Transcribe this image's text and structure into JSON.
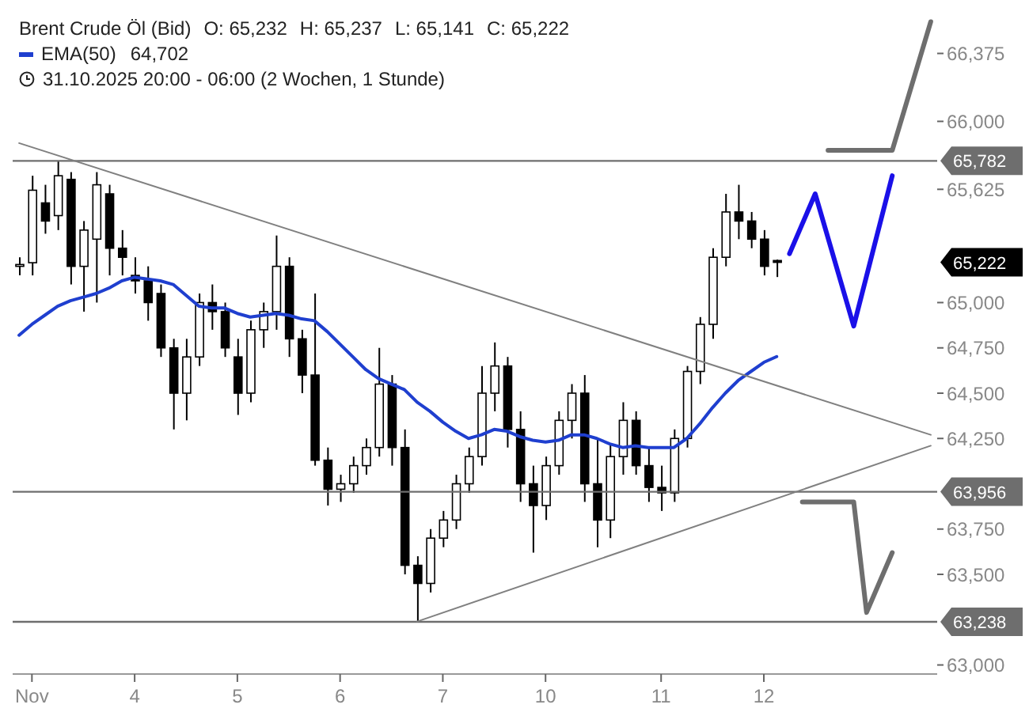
{
  "chart_data": {
    "type": "candlestick",
    "title": "Brent Crude Öl (Bid)",
    "subtitle": "31.10.2025 20:00 - 06:00  (2 Wochen, 1 Stunde)",
    "annotations": [
      "O: 65,232",
      "H: 65,237",
      "L: 65,141",
      "C: 65,222",
      "64,702",
      "65,222"
    ],
    "categories": [
      null,
      "Nov",
      null,
      null,
      null,
      null,
      null,
      null,
      null,
      "4",
      null,
      null,
      null,
      null,
      null,
      null,
      null,
      "5",
      null,
      null,
      null,
      null,
      null,
      null,
      null,
      "6",
      null,
      null,
      null,
      null,
      null,
      null,
      null,
      "7",
      null,
      null,
      null,
      null,
      null,
      null,
      null,
      "10",
      null,
      null,
      null,
      null,
      null,
      null,
      null,
      null,
      "11",
      null,
      null,
      null,
      null,
      null,
      null,
      null,
      "12",
      null,
      null,
      null,
      null,
      null,
      null,
      null,
      null,
      null,
      null,
      null,
      null,
      null
    ],
    "ohlc": [
      [
        65200,
        65250,
        65150,
        65210
      ],
      [
        65220,
        65700,
        65150,
        65620
      ],
      [
        65550,
        65650,
        65380,
        65450
      ],
      [
        65480,
        65780,
        65400,
        65700
      ],
      [
        65680,
        65720,
        65100,
        65200
      ],
      [
        65200,
        65450,
        64950,
        65400
      ],
      [
        65350,
        65720,
        65000,
        65650
      ],
      [
        65600,
        65650,
        65150,
        65300
      ],
      [
        65300,
        65400,
        65150,
        65250
      ],
      [
        65150,
        65250,
        65050,
        65120
      ],
      [
        65120,
        65200,
        64900,
        65000
      ],
      [
        65050,
        65100,
        64700,
        64750
      ],
      [
        64750,
        64800,
        64300,
        64500
      ],
      [
        64500,
        64800,
        64350,
        64700
      ],
      [
        64700,
        65050,
        64650,
        65000
      ],
      [
        65000,
        65100,
        64850,
        64950
      ],
      [
        64950,
        65000,
        64700,
        64750
      ],
      [
        64700,
        64800,
        64380,
        64500
      ],
      [
        64500,
        64900,
        64450,
        64850
      ],
      [
        64850,
        65000,
        64750,
        64950
      ],
      [
        64950,
        65370,
        64850,
        65200
      ],
      [
        65200,
        65250,
        64700,
        64800
      ],
      [
        64800,
        64850,
        64500,
        64600
      ],
      [
        64600,
        65050,
        64100,
        64130
      ],
      [
        64130,
        64200,
        63880,
        63970
      ],
      [
        63970,
        64050,
        63900,
        64000
      ],
      [
        64000,
        64150,
        63950,
        64100
      ],
      [
        64100,
        64250,
        64050,
        64200
      ],
      [
        64200,
        64750,
        64150,
        64550
      ],
      [
        64550,
        64600,
        64100,
        64200
      ],
      [
        64200,
        64300,
        63500,
        63550
      ],
      [
        63550,
        63600,
        63240,
        63450
      ],
      [
        63450,
        63750,
        63400,
        63700
      ],
      [
        63700,
        63850,
        63650,
        63800
      ],
      [
        63800,
        64050,
        63750,
        64000
      ],
      [
        64000,
        64200,
        63950,
        64150
      ],
      [
        64150,
        64650,
        64100,
        64500
      ],
      [
        64500,
        64780,
        64400,
        64650
      ],
      [
        64650,
        64700,
        64200,
        64300
      ],
      [
        64300,
        64400,
        63900,
        64000
      ],
      [
        64000,
        64100,
        63620,
        63880
      ],
      [
        63880,
        64150,
        63800,
        64100
      ],
      [
        64100,
        64400,
        64050,
        64350
      ],
      [
        64350,
        64550,
        64250,
        64500
      ],
      [
        64500,
        64600,
        63900,
        64000
      ],
      [
        64000,
        64250,
        63650,
        63800
      ],
      [
        63800,
        64220,
        63700,
        64150
      ],
      [
        64150,
        64450,
        64050,
        64350
      ],
      [
        64350,
        64400,
        64050,
        64100
      ],
      [
        64100,
        64200,
        63900,
        63980
      ],
      [
        63980,
        64100,
        63850,
        63950
      ],
      [
        63950,
        64300,
        63900,
        64250
      ],
      [
        64250,
        64650,
        64200,
        64620
      ],
      [
        64620,
        64920,
        64550,
        64880
      ],
      [
        64880,
        65300,
        64800,
        65250
      ],
      [
        65250,
        65600,
        65200,
        65500
      ],
      [
        65500,
        65650,
        65350,
        65450
      ],
      [
        65450,
        65500,
        65300,
        65350
      ],
      [
        65350,
        65400,
        65150,
        65200
      ],
      [
        65232,
        65237,
        65141,
        65222
      ],
      null,
      null,
      null,
      null,
      null,
      null,
      null,
      null,
      null,
      null,
      null,
      null
    ],
    "series": [
      {
        "name": "EMA(50)",
        "type": "line",
        "color": "#1f3fcf",
        "values": [
          64820,
          64880,
          64930,
          64980,
          65010,
          65030,
          65050,
          65080,
          65120,
          65140,
          65130,
          65120,
          65100,
          65040,
          64980,
          64970,
          64970,
          64940,
          64920,
          64930,
          64940,
          64930,
          64910,
          64900,
          64840,
          64770,
          64700,
          64630,
          64580,
          64550,
          64520,
          64450,
          64400,
          64340,
          64290,
          64250,
          64270,
          64300,
          64290,
          64260,
          64240,
          64230,
          64240,
          64270,
          64270,
          64250,
          64220,
          64200,
          64210,
          64200,
          64200,
          64200,
          64250,
          64330,
          64420,
          64500,
          64570,
          64620,
          64670,
          64702,
          null,
          null,
          null,
          null,
          null,
          null,
          null,
          null,
          null,
          null,
          null,
          null
        ]
      },
      {
        "type": "line",
        "color": "#808080",
        "values": [
          65880,
          null,
          null,
          null,
          null,
          null,
          null,
          null,
          null,
          null,
          null,
          null,
          null,
          null,
          null,
          null,
          null,
          null,
          null,
          null,
          null,
          null,
          null,
          null,
          null,
          null,
          null,
          null,
          null,
          null,
          null,
          null,
          null,
          null,
          null,
          null,
          null,
          null,
          null,
          null,
          null,
          null,
          null,
          null,
          null,
          null,
          null,
          null,
          null,
          null,
          null,
          null,
          null,
          null,
          null,
          null,
          null,
          null,
          null,
          null,
          null,
          null,
          null,
          null,
          null,
          null,
          null,
          null,
          null,
          null,
          null,
          64270
        ]
      },
      {
        "type": "line",
        "color": "#808080",
        "values": [
          null,
          null,
          null,
          null,
          null,
          null,
          null,
          null,
          null,
          null,
          null,
          null,
          null,
          null,
          null,
          null,
          null,
          null,
          null,
          null,
          null,
          null,
          null,
          null,
          null,
          null,
          null,
          null,
          null,
          null,
          null,
          63240,
          null,
          null,
          null,
          null,
          null,
          null,
          null,
          null,
          null,
          null,
          null,
          null,
          null,
          null,
          null,
          null,
          null,
          null,
          null,
          null,
          null,
          null,
          null,
          null,
          null,
          null,
          null,
          null,
          null,
          null,
          null,
          null,
          null,
          null,
          null,
          null,
          null,
          null,
          null,
          64210
        ]
      },
      {
        "type": "line",
        "color": "#1a10e8",
        "values": [
          null,
          null,
          null,
          null,
          null,
          null,
          null,
          null,
          null,
          null,
          null,
          null,
          null,
          null,
          null,
          null,
          null,
          null,
          null,
          null,
          null,
          null,
          null,
          null,
          null,
          null,
          null,
          null,
          null,
          null,
          null,
          null,
          null,
          null,
          null,
          null,
          null,
          null,
          null,
          null,
          null,
          null,
          null,
          null,
          null,
          null,
          null,
          null,
          null,
          null,
          null,
          null,
          null,
          null,
          null,
          null,
          null,
          null,
          null,
          null,
          65270,
          null,
          65600,
          null,
          null,
          64870,
          null,
          null,
          65700,
          null,
          null,
          null
        ]
      },
      {
        "type": "line",
        "color": "#6e6e6e",
        "values": [
          null,
          null,
          null,
          null,
          null,
          null,
          null,
          null,
          null,
          null,
          null,
          null,
          null,
          null,
          null,
          null,
          null,
          null,
          null,
          null,
          null,
          null,
          null,
          null,
          null,
          null,
          null,
          null,
          null,
          null,
          null,
          null,
          null,
          null,
          null,
          null,
          null,
          null,
          null,
          null,
          null,
          null,
          null,
          null,
          null,
          null,
          null,
          null,
          null,
          null,
          null,
          null,
          null,
          null,
          null,
          null,
          null,
          null,
          null,
          null,
          null,
          null,
          null,
          65840,
          null,
          null,
          null,
          null,
          65840,
          null,
          null,
          66550
        ]
      },
      {
        "type": "line",
        "color": "#6e6e6e",
        "values": [
          null,
          null,
          null,
          null,
          null,
          null,
          null,
          null,
          null,
          null,
          null,
          null,
          null,
          null,
          null,
          null,
          null,
          null,
          null,
          null,
          null,
          null,
          null,
          null,
          null,
          null,
          null,
          null,
          null,
          null,
          null,
          null,
          null,
          null,
          null,
          null,
          null,
          null,
          null,
          null,
          null,
          null,
          null,
          null,
          null,
          null,
          null,
          null,
          null,
          null,
          null,
          null,
          null,
          null,
          null,
          null,
          null,
          null,
          null,
          null,
          null,
          63900,
          null,
          null,
          null,
          63900,
          63290,
          null,
          63620,
          null,
          null,
          null
        ]
      }
    ],
    "ylim": [
      62950,
      66600
    ],
    "yticks": [
      {
        "value": 63000,
        "label": "63,000"
      },
      {
        "value": 63500,
        "label": "63,500"
      },
      {
        "value": 63750,
        "label": "63,750"
      },
      {
        "value": 64250,
        "label": "64,250"
      },
      {
        "value": 64500,
        "label": "64,500"
      },
      {
        "value": 64750,
        "label": "64,750"
      },
      {
        "value": 65000,
        "label": "65,000"
      },
      {
        "value": 65625,
        "label": "65,625"
      },
      {
        "value": 66000,
        "label": "66,000"
      },
      {
        "value": 66375,
        "label": "66,375"
      }
    ],
    "ref_lines": [
      {
        "axis": "y",
        "value": 65782,
        "label": "65,782",
        "color": "#6e6e6e"
      },
      {
        "axis": "y",
        "value": 63956,
        "label": "63,956",
        "color": "#6e6e6e"
      },
      {
        "axis": "y",
        "value": 63238,
        "label": "63,238",
        "color": "#6e6e6e"
      }
    ],
    "legend": "top left"
  }
}
